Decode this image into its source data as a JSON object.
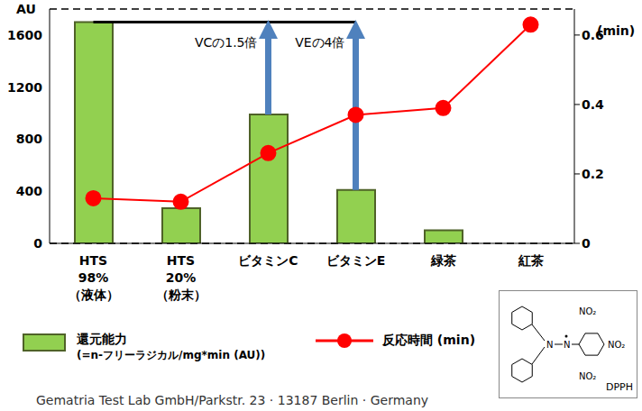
{
  "chart_data": {
    "type": "bar",
    "y_label": "AU",
    "y2_label": "(min)",
    "categories": [
      "HTS\n98%\n（液体）",
      "HTS\n20%\n（粉末）",
      "ビタミンC",
      "ビタミンE",
      "緑茶",
      "紅茶"
    ],
    "series": [
      {
        "name": "還元能力\n(=n-フリーラジカル/mg*min (AU))",
        "type": "bar",
        "color": "#92d050",
        "values": [
          1700,
          270,
          990,
          410,
          100,
          null
        ]
      },
      {
        "name": "反応時間 (min)",
        "type": "line",
        "color": "#ff0000",
        "marker": "circle",
        "axis": "y2",
        "values": [
          0.13,
          0.12,
          0.26,
          0.37,
          0.39,
          0.63
        ]
      }
    ],
    "ylim": [
      0,
      1800
    ],
    "yticks": [
      0,
      400,
      800,
      1200,
      1600
    ],
    "y2lim": [
      0,
      0.675
    ],
    "y2ticks": [
      0,
      0.2,
      0.4,
      0.6
    ],
    "grid": true,
    "annotations": [
      {
        "text": "VCの1.5倍",
        "category": "ビタミンC"
      },
      {
        "text": "VEの4倍",
        "category": "ビタミンE"
      }
    ],
    "footnote": "Gematria Test Lab GmbH/Parkstr. 23 · 13187 Berlin · Germany",
    "inset": {
      "title": "DPPH",
      "labels": [
        "NO₂",
        "NO₂",
        "NO₂"
      ]
    }
  }
}
